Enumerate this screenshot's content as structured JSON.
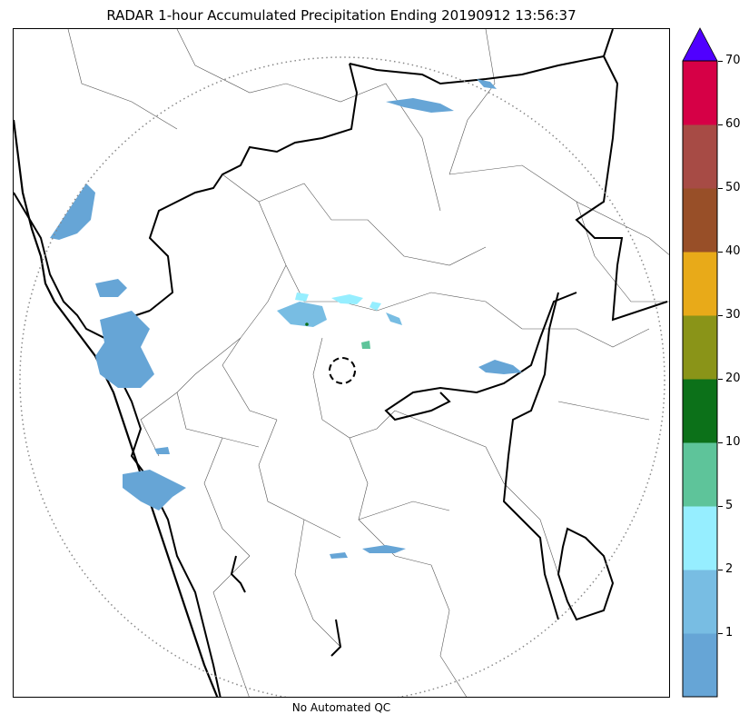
{
  "title": "RADAR 1-hour Accumulated Precipitation Ending 20190912 13:56:37",
  "xlabel": "No Automated QC",
  "colorbar": {
    "overflow_color": "#5000ff",
    "bins": [
      {
        "color": "#66a5d6"
      },
      {
        "color": "#78bde3"
      },
      {
        "color": "#96eeff"
      },
      {
        "color": "#5ec49a"
      },
      {
        "color": "#0c7119"
      },
      {
        "color": "#8a9418"
      },
      {
        "color": "#e8aa19"
      },
      {
        "color": "#984f28"
      },
      {
        "color": "#a74b45"
      },
      {
        "color": "#d60046"
      }
    ],
    "tick_labels": [
      "1",
      "2",
      "5",
      "10",
      "20",
      "30",
      "40",
      "50",
      "60",
      "70"
    ]
  },
  "layers": {
    "range_ring": "range-ring",
    "radar_site": "radar-site-marker",
    "coastline": "coastline",
    "state_borders": "state-borders",
    "district_borders": "district-borders"
  }
}
